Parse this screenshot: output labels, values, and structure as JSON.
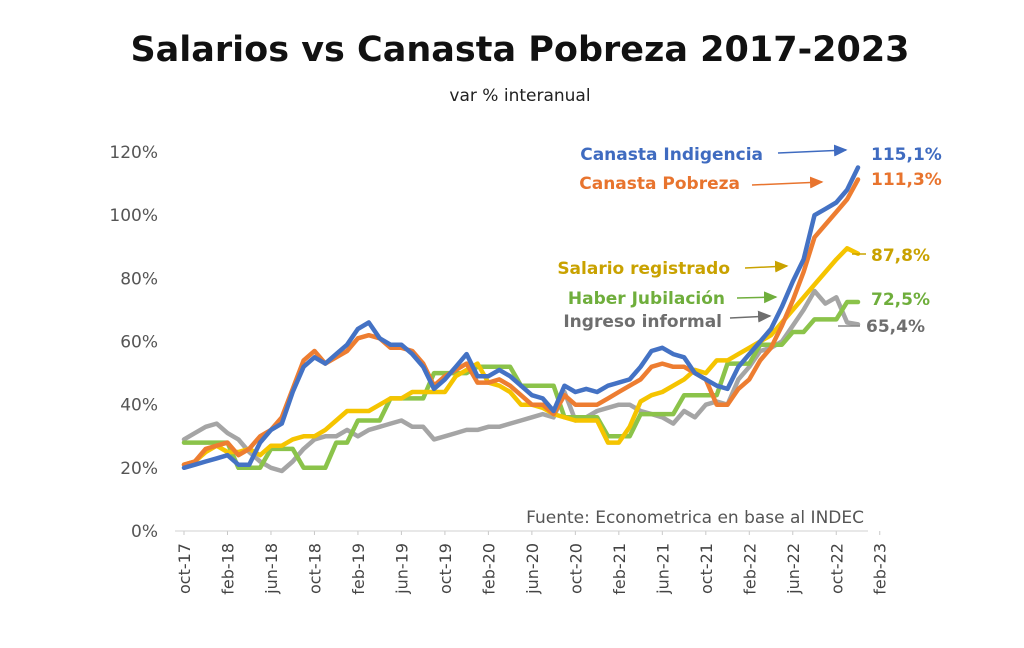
{
  "chart_data": {
    "type": "line",
    "title": "Salarios vs Canasta Pobreza 2017-2023",
    "subtitle": "var % interanual",
    "source": "Fuente: Econometrica en base al INDEC",
    "ylim": [
      0,
      120
    ],
    "yticks": [
      "0%",
      "20%",
      "40%",
      "60%",
      "80%",
      "100%",
      "120%"
    ],
    "xticks": [
      "oct-17",
      "feb-18",
      "jun-18",
      "oct-18",
      "feb-19",
      "jun-19",
      "oct-19",
      "feb-20",
      "jun-20",
      "oct-20",
      "feb-21",
      "jun-21",
      "oct-21",
      "feb-22",
      "jun-22",
      "oct-22",
      "feb-23"
    ],
    "grid": false,
    "legend": "inline-right",
    "series": [
      {
        "name": "Canasta Indigencia",
        "color": "#4472C4",
        "end_label": "115,1%",
        "values": [
          20,
          21,
          22,
          23,
          24,
          21,
          21,
          28,
          32,
          34,
          44,
          52,
          55,
          53,
          56,
          59,
          64,
          66,
          61,
          59,
          59,
          56,
          52,
          45,
          48,
          52,
          56,
          49,
          49,
          51,
          49,
          46,
          43,
          42,
          38,
          46,
          44,
          45,
          44,
          46,
          47,
          48,
          52,
          57,
          58,
          56,
          55,
          50,
          48,
          46,
          45,
          52,
          56,
          60,
          64,
          71,
          79,
          86,
          100,
          102,
          104,
          108,
          115.1
        ]
      },
      {
        "name": "Canasta Pobreza",
        "color": "#ED7D31",
        "end_label": "111,3%",
        "values": [
          21,
          22,
          26,
          27,
          28,
          24,
          26,
          30,
          32,
          36,
          45,
          54,
          57,
          53,
          55,
          57,
          61,
          62,
          61,
          58,
          58,
          57,
          53,
          46,
          49,
          51,
          53,
          47,
          47,
          48,
          46,
          43,
          40,
          40,
          37,
          43,
          40,
          40,
          40,
          42,
          44,
          46,
          48,
          52,
          53,
          52,
          52,
          50,
          48,
          40,
          40,
          45,
          48,
          54,
          58,
          65,
          73,
          82,
          93,
          97,
          101,
          105,
          111.3
        ]
      },
      {
        "name": "Salario registrado",
        "color": "#F5C400",
        "end_label": "87,8%",
        "values": [
          21,
          22,
          25,
          27,
          25,
          25,
          26,
          24,
          27,
          27,
          29,
          30,
          30,
          32,
          35,
          38,
          38,
          38,
          40,
          42,
          42,
          44,
          44,
          44,
          44,
          49,
          51,
          53,
          47,
          46,
          44,
          40,
          40,
          39,
          37,
          36,
          35,
          35,
          35,
          28,
          28,
          33,
          41,
          43,
          44,
          46,
          48,
          51,
          50,
          54,
          54,
          56,
          58,
          60,
          62,
          66,
          70,
          74,
          78,
          82,
          86,
          89.5,
          87.8
        ]
      },
      {
        "name": "Haber Jubilación",
        "color": "#8BC34A",
        "end_label": "72,5%",
        "values": [
          28,
          28,
          28,
          28,
          28,
          20,
          20,
          20,
          26,
          26,
          26,
          20,
          20,
          20,
          28,
          28,
          35,
          35,
          35,
          42,
          42,
          42,
          42,
          50,
          50,
          50,
          50,
          52,
          52,
          52,
          52,
          46,
          46,
          46,
          46,
          36,
          36,
          36,
          36,
          30,
          30,
          30,
          37,
          37,
          37,
          37,
          43,
          43,
          43,
          43,
          53,
          53,
          53,
          59,
          59,
          59,
          63,
          63,
          67,
          67,
          67,
          72.5,
          72.5
        ]
      },
      {
        "name": "Ingreso informal",
        "color": "#A5A5A5",
        "end_label": "65,4%",
        "values": [
          29,
          31,
          33,
          34,
          31,
          29,
          25,
          22,
          20,
          19,
          22,
          26,
          29,
          30,
          30,
          32,
          30,
          32,
          33,
          34,
          35,
          33,
          33,
          29,
          30,
          31,
          32,
          32,
          33,
          33,
          34,
          35,
          36,
          37,
          36,
          44,
          35,
          36,
          38,
          39,
          40,
          40,
          38,
          37,
          36,
          34,
          38,
          36,
          40,
          41,
          40,
          48,
          52,
          57,
          58,
          60,
          65,
          70,
          76,
          72,
          74,
          66,
          65.4
        ]
      }
    ]
  }
}
